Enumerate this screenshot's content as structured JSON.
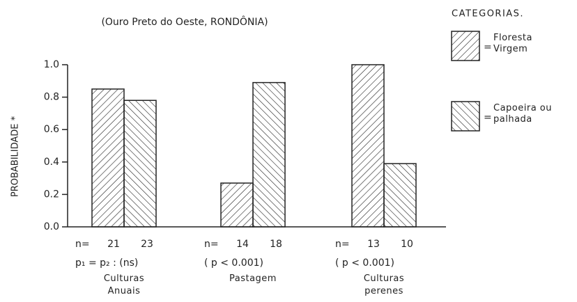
{
  "chart_data": {
    "type": "bar",
    "subtitle": "(Ouro Preto do Oeste, RONDÔNIA)",
    "ylabel": "PROBABILIDADE *",
    "legend_title": "CATEGORIAS.",
    "legend_separator": "=",
    "legend": "right",
    "categories": [
      "Culturas Anuais",
      "Pastagem",
      "Culturas perenes"
    ],
    "n_label": "n=",
    "p_labels": [
      "p₁ = p₂ : (ns)",
      "( p < 0.001)",
      "( p < 0.001)"
    ],
    "series": [
      {
        "name": "Floresta Virgem",
        "color": "#222222",
        "hatch": "forward",
        "values": [
          0.85,
          0.27,
          1.0
        ],
        "n": [
          21,
          14,
          13
        ]
      },
      {
        "name": "Capoeira ou palhada",
        "color": "#222222",
        "hatch": "backward",
        "values": [
          0.78,
          0.89,
          0.39
        ],
        "n": [
          23,
          18,
          10
        ]
      }
    ],
    "ylim": [
      0,
      1.0
    ],
    "yticks": [
      {
        "value": 0,
        "label": "0.0"
      },
      0.2,
      0.4,
      0.6,
      0.8,
      {
        "value": 1.0,
        "label": "1.0"
      }
    ]
  }
}
